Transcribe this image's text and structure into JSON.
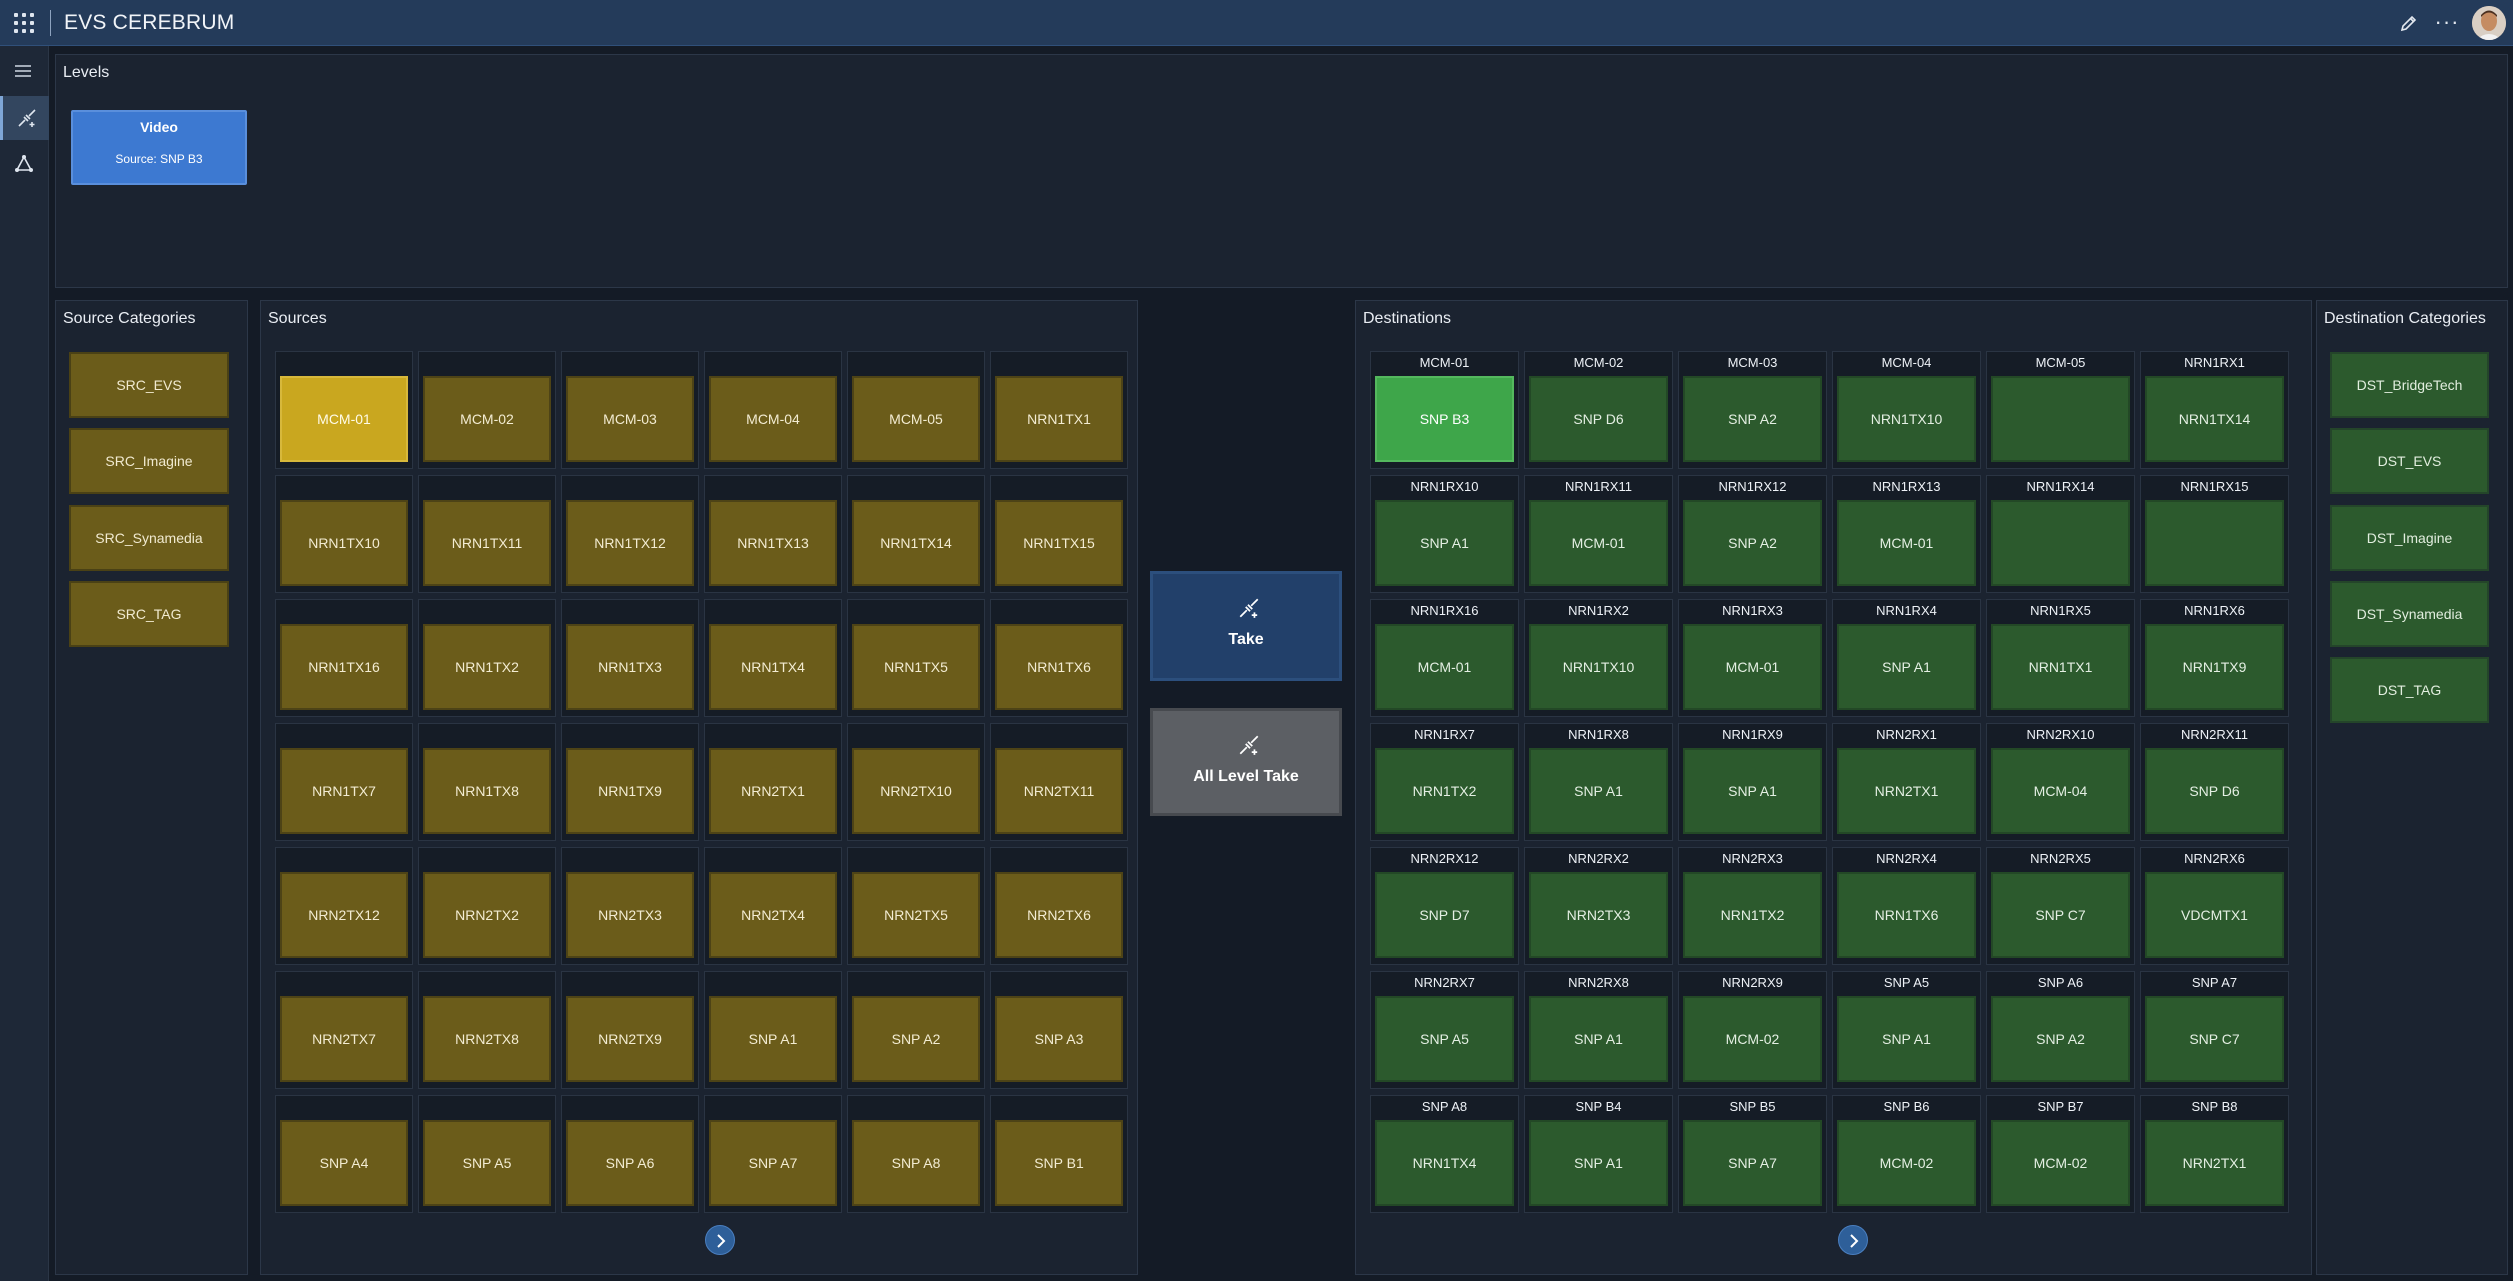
{
  "app": {
    "title": "EVS CEREBRUM"
  },
  "colors": {
    "topbar": "#243b5a",
    "source": "#6b5c1a",
    "source_selected": "#c9a71f",
    "destination": "#2c5a2d",
    "destination_selected": "#3ea64a",
    "level": "#3d79d1",
    "take": "#22406a",
    "all_level_take": "#5c5f64"
  },
  "icons": {
    "apps": "grid-icon",
    "menu": "hamburger-icon",
    "router": "plug-icon",
    "topology": "triangle-nodes-icon",
    "edit": "pencil-icon",
    "more": "ellipsis-icon",
    "next": "chevron-right-icon"
  },
  "levels": {
    "title": "Levels",
    "items": [
      {
        "name": "Video",
        "source": "Source: SNP B3"
      }
    ]
  },
  "source_categories": {
    "title": "Source Categories",
    "items": [
      "SRC_EVS",
      "SRC_Imagine",
      "SRC_Synamedia",
      "SRC_TAG"
    ]
  },
  "sources": {
    "title": "Sources",
    "items": [
      "MCM-01",
      "MCM-02",
      "MCM-03",
      "MCM-04",
      "MCM-05",
      "NRN1TX1",
      "NRN1TX10",
      "NRN1TX11",
      "NRN1TX12",
      "NRN1TX13",
      "NRN1TX14",
      "NRN1TX15",
      "NRN1TX16",
      "NRN1TX2",
      "NRN1TX3",
      "NRN1TX4",
      "NRN1TX5",
      "NRN1TX6",
      "NRN1TX7",
      "NRN1TX8",
      "NRN1TX9",
      "NRN2TX1",
      "NRN2TX10",
      "NRN2TX11",
      "NRN2TX12",
      "NRN2TX2",
      "NRN2TX3",
      "NRN2TX4",
      "NRN2TX5",
      "NRN2TX6",
      "NRN2TX7",
      "NRN2TX8",
      "NRN2TX9",
      "SNP A1",
      "SNP A2",
      "SNP A3",
      "SNP A4",
      "SNP A5",
      "SNP A6",
      "SNP A7",
      "SNP A8",
      "SNP B1"
    ],
    "selected": "MCM-01"
  },
  "actions": {
    "take": "Take",
    "all_level_take": "All Level Take"
  },
  "destinations": {
    "title": "Destinations",
    "selected": "MCM-01",
    "items": [
      {
        "name": "MCM-01",
        "source": "SNP B3"
      },
      {
        "name": "MCM-02",
        "source": "SNP D6"
      },
      {
        "name": "MCM-03",
        "source": "SNP A2"
      },
      {
        "name": "MCM-04",
        "source": "NRN1TX10"
      },
      {
        "name": "MCM-05",
        "source": ""
      },
      {
        "name": "NRN1RX1",
        "source": "NRN1TX14"
      },
      {
        "name": "NRN1RX10",
        "source": "SNP A1"
      },
      {
        "name": "NRN1RX11",
        "source": "MCM-01"
      },
      {
        "name": "NRN1RX12",
        "source": "SNP A2"
      },
      {
        "name": "NRN1RX13",
        "source": "MCM-01"
      },
      {
        "name": "NRN1RX14",
        "source": ""
      },
      {
        "name": "NRN1RX15",
        "source": ""
      },
      {
        "name": "NRN1RX16",
        "source": "MCM-01"
      },
      {
        "name": "NRN1RX2",
        "source": "NRN1TX10"
      },
      {
        "name": "NRN1RX3",
        "source": "MCM-01"
      },
      {
        "name": "NRN1RX4",
        "source": "SNP A1"
      },
      {
        "name": "NRN1RX5",
        "source": "NRN1TX1"
      },
      {
        "name": "NRN1RX6",
        "source": "NRN1TX9"
      },
      {
        "name": "NRN1RX7",
        "source": "NRN1TX2"
      },
      {
        "name": "NRN1RX8",
        "source": "SNP A1"
      },
      {
        "name": "NRN1RX9",
        "source": "SNP A1"
      },
      {
        "name": "NRN2RX1",
        "source": "NRN2TX1"
      },
      {
        "name": "NRN2RX10",
        "source": "MCM-04"
      },
      {
        "name": "NRN2RX11",
        "source": "SNP D6"
      },
      {
        "name": "NRN2RX12",
        "source": "SNP D7"
      },
      {
        "name": "NRN2RX2",
        "source": "NRN2TX3"
      },
      {
        "name": "NRN2RX3",
        "source": "NRN1TX2"
      },
      {
        "name": "NRN2RX4",
        "source": "NRN1TX6"
      },
      {
        "name": "NRN2RX5",
        "source": "SNP C7"
      },
      {
        "name": "NRN2RX6",
        "source": "VDCMTX1"
      },
      {
        "name": "NRN2RX7",
        "source": "SNP A5"
      },
      {
        "name": "NRN2RX8",
        "source": "SNP A1"
      },
      {
        "name": "NRN2RX9",
        "source": "MCM-02"
      },
      {
        "name": "SNP A5",
        "source": "SNP A1"
      },
      {
        "name": "SNP A6",
        "source": "SNP A2"
      },
      {
        "name": "SNP A7",
        "source": "SNP C7"
      },
      {
        "name": "SNP A8",
        "source": "NRN1TX4"
      },
      {
        "name": "SNP B4",
        "source": "SNP A1"
      },
      {
        "name": "SNP B5",
        "source": "SNP A7"
      },
      {
        "name": "SNP B6",
        "source": "MCM-02"
      },
      {
        "name": "SNP B7",
        "source": "MCM-02"
      },
      {
        "name": "SNP B8",
        "source": "NRN2TX1"
      }
    ]
  },
  "destination_categories": {
    "title": "Destination Categories",
    "items": [
      "DST_BridgeTech",
      "DST_EVS",
      "DST_Imagine",
      "DST_Synamedia",
      "DST_TAG"
    ]
  }
}
